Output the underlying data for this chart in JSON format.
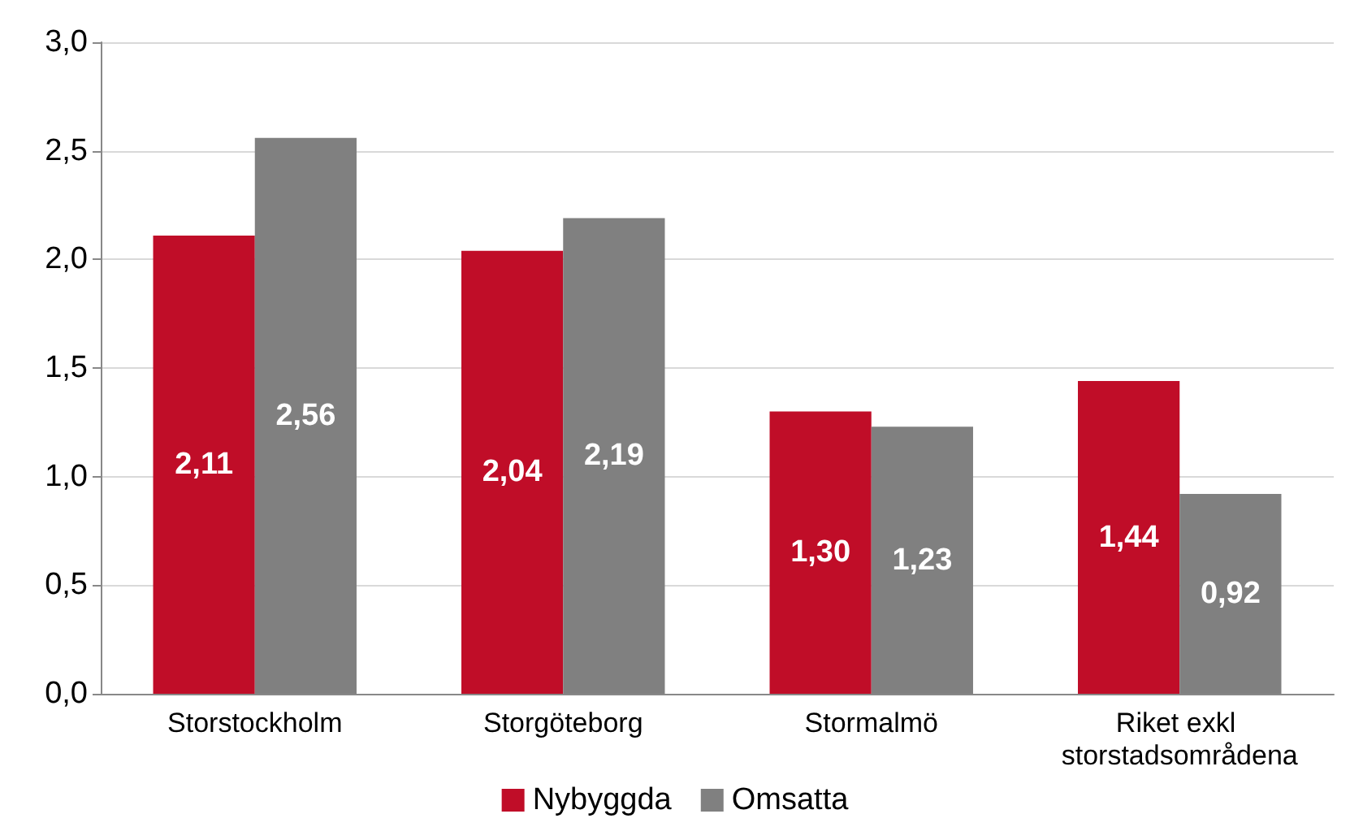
{
  "chart_data": {
    "type": "bar",
    "categories": [
      "Storstockholm",
      "Storgöteborg",
      "Stormalmö",
      "Riket exkl storstadsområdena"
    ],
    "series": [
      {
        "name": "Nybyggda",
        "color": "#c00d28",
        "values": [
          2.11,
          2.04,
          1.3,
          1.44
        ],
        "value_labels": [
          "2,11",
          "2,04",
          "1,30",
          "1,44"
        ]
      },
      {
        "name": "Omsatta",
        "color": "#808080",
        "values": [
          2.56,
          2.19,
          1.23,
          0.92
        ],
        "value_labels": [
          "2,56",
          "2,19",
          "1,23",
          "0,92"
        ]
      }
    ],
    "ylim": [
      0,
      3
    ],
    "yticks": [
      {
        "value": 0,
        "label": "0,0"
      },
      {
        "value": 0.5,
        "label": "0,5"
      },
      {
        "value": 1,
        "label": "1,0"
      },
      {
        "value": 1.5,
        "label": "1,5"
      },
      {
        "value": 2,
        "label": "2,0"
      },
      {
        "value": 2.5,
        "label": "2,5"
      },
      {
        "value": 3,
        "label": "3,0"
      }
    ],
    "grid": "y",
    "legend": "bottom"
  }
}
